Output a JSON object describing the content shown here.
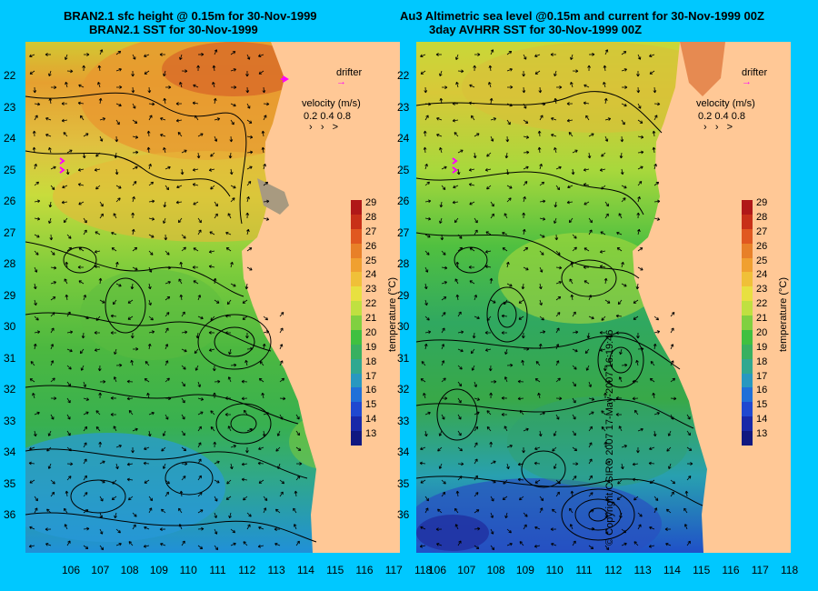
{
  "left_panel": {
    "title_line1": "BRAN2.1 sfc height @ 0.15m for 30-Nov-1999",
    "title_line2": "BRAN2.1 SST for 30-Nov-1999"
  },
  "right_panel": {
    "title_line1": "Au3 Altimetric sea level  @0.15m and current for 30-Nov-1999 00Z",
    "title_line2": "3day AVHRR SST for 30-Nov-1999 00Z"
  },
  "legend": {
    "drifter_label": "drifter",
    "velocity_label": "velocity (m/s)",
    "velocity_values": "0.2  0.4  0.8"
  },
  "colorbar": {
    "title": "temperature (°C)",
    "ticks": [
      "29",
      "28",
      "27",
      "26",
      "25",
      "24",
      "23",
      "22",
      "21",
      "20",
      "19",
      "18",
      "17",
      "16",
      "15",
      "14",
      "13"
    ]
  },
  "axes": {
    "y_ticks": [
      "22",
      "23",
      "24",
      "25",
      "26",
      "27",
      "28",
      "29",
      "30",
      "31",
      "32",
      "33",
      "34",
      "35",
      "36"
    ],
    "x_ticks": [
      "106",
      "107",
      "108",
      "109",
      "110",
      "111",
      "112",
      "113",
      "114",
      "115",
      "116",
      "117",
      "118"
    ]
  },
  "copyright": "© Copyright CSIRO 2007   17-May-2007 16:19:46",
  "colors": {
    "background": "#00c8ff",
    "land": "#ffc896",
    "drifter": "#ff00ff"
  }
}
